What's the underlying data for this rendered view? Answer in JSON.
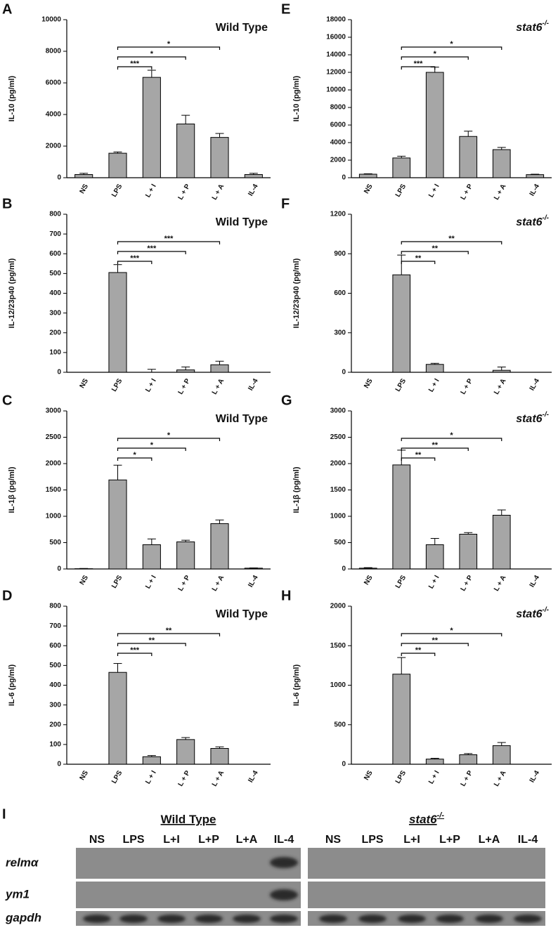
{
  "chart_data": [
    {
      "type": "bar",
      "panel": "A",
      "title": "Wild Type",
      "ylabel": "IL-10 (pg/ml)",
      "categories": [
        "NS",
        "LPS",
        "L + I",
        "L + P",
        "L + A",
        "IL-4"
      ],
      "values": [
        200,
        1550,
        6350,
        3400,
        2550,
        200
      ],
      "errors": [
        80,
        80,
        450,
        550,
        250,
        80
      ],
      "ylim": [
        0,
        10000
      ],
      "yticks": [
        0,
        2000,
        4000,
        6000,
        8000,
        10000
      ],
      "color": "#a6a6a6",
      "brackets": [
        {
          "from": "LPS",
          "to": "L + I",
          "label": "***"
        },
        {
          "from": "LPS",
          "to": "L + P",
          "label": "*"
        },
        {
          "from": "LPS",
          "to": "L + A",
          "label": "*"
        }
      ]
    },
    {
      "type": "bar",
      "panel": "B",
      "title": "Wild Type",
      "ylabel": "IL-12/23p40 (pg/ml)",
      "categories": [
        "NS",
        "LPS",
        "L + I",
        "L + P",
        "L + A",
        "IL-4"
      ],
      "values": [
        0,
        505,
        0,
        12,
        38,
        0
      ],
      "errors": [
        0,
        40,
        15,
        15,
        18,
        0
      ],
      "ylim": [
        0,
        800
      ],
      "yticks": [
        0,
        100,
        200,
        300,
        400,
        500,
        600,
        700,
        800
      ],
      "color": "#a6a6a6",
      "brackets": [
        {
          "from": "LPS",
          "to": "L + I",
          "label": "***"
        },
        {
          "from": "LPS",
          "to": "L + P",
          "label": "***"
        },
        {
          "from": "LPS",
          "to": "L + A",
          "label": "***"
        }
      ]
    },
    {
      "type": "bar",
      "panel": "C",
      "title": "Wild Type",
      "ylabel": "IL-1β (pg/ml)",
      "categories": [
        "NS",
        "LPS",
        "L + I",
        "L + P",
        "L + A",
        "IL-4"
      ],
      "values": [
        5,
        1690,
        460,
        515,
        860,
        15
      ],
      "errors": [
        5,
        280,
        110,
        30,
        70,
        5
      ],
      "ylim": [
        0,
        3000
      ],
      "yticks": [
        0,
        500,
        1000,
        1500,
        2000,
        2500,
        3000
      ],
      "color": "#a6a6a6",
      "brackets": [
        {
          "from": "LPS",
          "to": "L + I",
          "label": "*"
        },
        {
          "from": "LPS",
          "to": "L + P",
          "label": "*"
        },
        {
          "from": "LPS",
          "to": "L + A",
          "label": "*"
        }
      ]
    },
    {
      "type": "bar",
      "panel": "D",
      "title": "Wild Type",
      "ylabel": "IL-6 (pg/ml)",
      "categories": [
        "NS",
        "LPS",
        "L + I",
        "L + P",
        "L + A",
        "IL-4"
      ],
      "values": [
        0,
        465,
        38,
        125,
        80,
        0
      ],
      "errors": [
        0,
        45,
        6,
        10,
        8,
        0
      ],
      "ylim": [
        0,
        800
      ],
      "yticks": [
        0,
        100,
        200,
        300,
        400,
        500,
        600,
        700,
        800
      ],
      "color": "#a6a6a6",
      "brackets": [
        {
          "from": "LPS",
          "to": "L + I",
          "label": "***"
        },
        {
          "from": "LPS",
          "to": "L + P",
          "label": "**"
        },
        {
          "from": "LPS",
          "to": "L + A",
          "label": "**"
        }
      ]
    },
    {
      "type": "bar",
      "panel": "E",
      "title": "stat6",
      "title_sup": "-/-",
      "title_italic": true,
      "ylabel": "IL-10 (pg/ml)",
      "categories": [
        "NS",
        "LPS",
        "L + I",
        "L + P",
        "L + A",
        "IL-4"
      ],
      "values": [
        400,
        2250,
        12000,
        4700,
        3200,
        350
      ],
      "errors": [
        50,
        200,
        600,
        600,
        250,
        50
      ],
      "ylim": [
        0,
        18000
      ],
      "yticks": [
        0,
        2000,
        4000,
        6000,
        8000,
        10000,
        12000,
        14000,
        16000,
        18000
      ],
      "color": "#a6a6a6",
      "brackets": [
        {
          "from": "LPS",
          "to": "L + I",
          "label": "***"
        },
        {
          "from": "LPS",
          "to": "L + P",
          "label": "*"
        },
        {
          "from": "LPS",
          "to": "L + A",
          "label": "*"
        }
      ]
    },
    {
      "type": "bar",
      "panel": "F",
      "title": "stat6",
      "title_sup": "-/-",
      "title_italic": true,
      "ylabel": "IL-12/23p40 (pg/ml)",
      "categories": [
        "NS",
        "LPS",
        "L + I",
        "L + P",
        "L + A",
        "IL-4"
      ],
      "values": [
        0,
        740,
        60,
        0,
        15,
        0
      ],
      "errors": [
        0,
        150,
        8,
        0,
        25,
        0
      ],
      "ylim": [
        0,
        1200
      ],
      "yticks": [
        0,
        300,
        600,
        900,
        1200
      ],
      "color": "#a6a6a6",
      "brackets": [
        {
          "from": "LPS",
          "to": "L + I",
          "label": "**"
        },
        {
          "from": "LPS",
          "to": "L + P",
          "label": "**"
        },
        {
          "from": "LPS",
          "to": "L + A",
          "label": "**"
        }
      ]
    },
    {
      "type": "bar",
      "panel": "G",
      "title": "stat6",
      "title_sup": "-/-",
      "title_italic": true,
      "ylabel": "IL-1β (pg/ml)",
      "categories": [
        "NS",
        "LPS",
        "L + I",
        "L + P",
        "L + A",
        "IL-4"
      ],
      "values": [
        15,
        1975,
        460,
        660,
        1020,
        0
      ],
      "errors": [
        10,
        280,
        120,
        30,
        100,
        0
      ],
      "ylim": [
        0,
        3000
      ],
      "yticks": [
        0,
        500,
        1000,
        1500,
        2000,
        2500,
        3000
      ],
      "color": "#a6a6a6",
      "brackets": [
        {
          "from": "LPS",
          "to": "L + I",
          "label": "**"
        },
        {
          "from": "LPS",
          "to": "L + P",
          "label": "**"
        },
        {
          "from": "LPS",
          "to": "L + A",
          "label": "*"
        }
      ]
    },
    {
      "type": "bar",
      "panel": "H",
      "title": "stat6",
      "title_sup": "-/-",
      "title_italic": true,
      "ylabel": "IL-6 (pg/ml)",
      "categories": [
        "NS",
        "LPS",
        "L + I",
        "L + P",
        "L + A",
        "IL-4"
      ],
      "values": [
        0,
        1140,
        65,
        120,
        235,
        0
      ],
      "errors": [
        0,
        210,
        10,
        15,
        40,
        0
      ],
      "ylim": [
        0,
        2000
      ],
      "yticks": [
        0,
        500,
        1000,
        1500,
        2000
      ],
      "color": "#a6a6a6",
      "brackets": [
        {
          "from": "LPS",
          "to": "L + I",
          "label": "**"
        },
        {
          "from": "LPS",
          "to": "L + P",
          "label": "**"
        },
        {
          "from": "LPS",
          "to": "L + A",
          "label": "*"
        }
      ]
    }
  ],
  "gel": {
    "panel": "I",
    "genes": [
      "relmα",
      "ym1",
      "gapdh"
    ],
    "groups": [
      {
        "title": "Wild Type",
        "lanes": [
          "NS",
          "LPS",
          "L+I",
          "L+P",
          "L+A",
          "IL-4"
        ]
      },
      {
        "title": "stat6",
        "title_sup": "-/-",
        "lanes": [
          "NS",
          "LPS",
          "L+I",
          "L+P",
          "L+A",
          "IL-4"
        ]
      }
    ]
  }
}
